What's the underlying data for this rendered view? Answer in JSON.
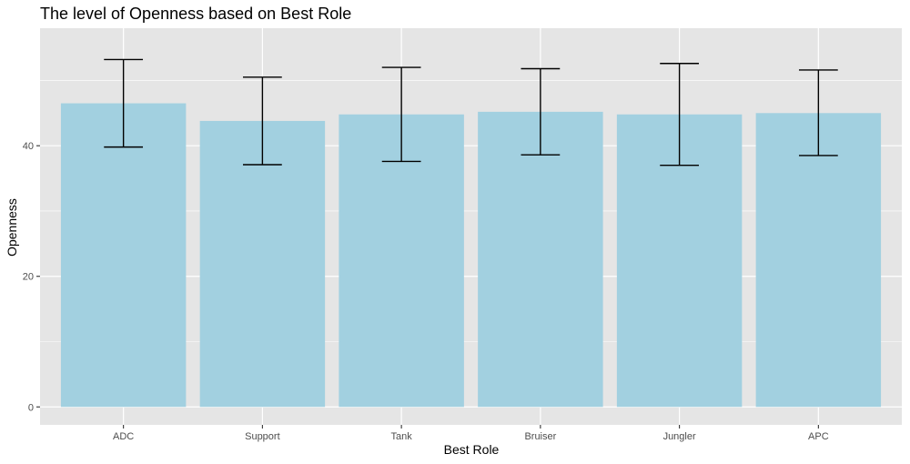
{
  "chart_data": {
    "type": "bar",
    "title": "The level of Openness based on Best Role",
    "xlabel": "Best Role",
    "ylabel": "Openness",
    "categories": [
      "ADC",
      "Support",
      "Tank",
      "Bruiser",
      "Jungler",
      "APC"
    ],
    "values": [
      46.5,
      43.8,
      44.8,
      45.2,
      44.8,
      45.0
    ],
    "error_low": [
      39.8,
      37.1,
      37.6,
      38.6,
      37.0,
      38.5
    ],
    "error_high": [
      53.2,
      50.5,
      52.0,
      51.8,
      52.6,
      51.6
    ],
    "yticks": [
      0,
      20,
      40
    ],
    "ylim": [
      -2.75,
      58
    ],
    "grid": true,
    "bar_color": "#a2d0e0",
    "panel_color": "#e5e5e5",
    "grid_color": "#ffffff",
    "errorbar_color": "#000000"
  }
}
